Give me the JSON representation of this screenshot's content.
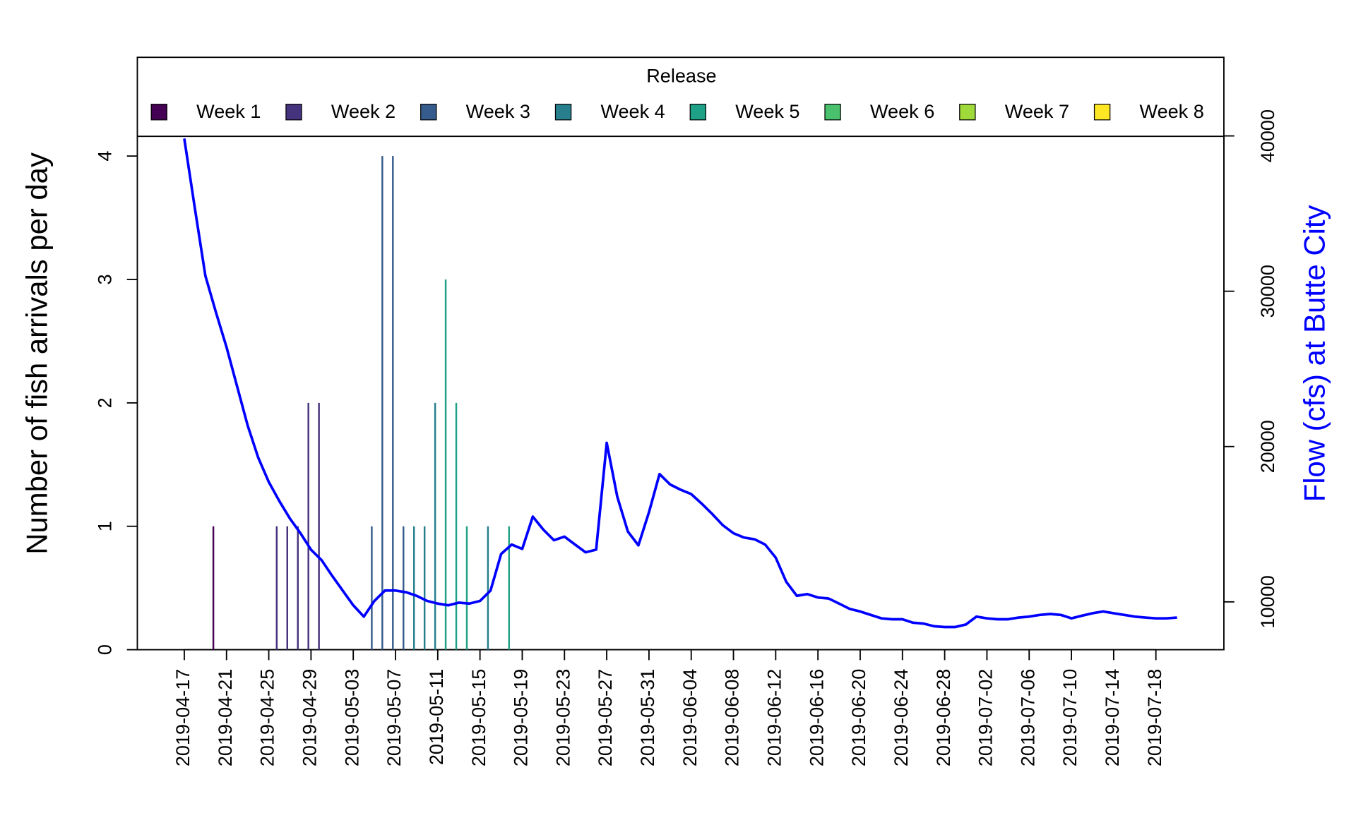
{
  "chart_data": {
    "type": "bar",
    "y_label": "Number of fish arrivals per day",
    "y2_label": "Flow (cfs) at Butte City",
    "legend_title": "Release",
    "ylim": [
      0,
      4.8
    ],
    "yticks": [
      0,
      1,
      2,
      3,
      4
    ],
    "y2lim": [
      6920,
      45060
    ],
    "y2ticks": [
      10000,
      20000,
      30000,
      40000
    ],
    "x": [
      "2019-04-17",
      "2019-04-18",
      "2019-04-19",
      "2019-04-20",
      "2019-04-21",
      "2019-04-22",
      "2019-04-23",
      "2019-04-24",
      "2019-04-25",
      "2019-04-26",
      "2019-04-27",
      "2019-04-28",
      "2019-04-29",
      "2019-04-30",
      "2019-05-01",
      "2019-05-02",
      "2019-05-03",
      "2019-05-04",
      "2019-05-05",
      "2019-05-06",
      "2019-05-07",
      "2019-05-08",
      "2019-05-09",
      "2019-05-10",
      "2019-05-11",
      "2019-05-12",
      "2019-05-13",
      "2019-05-14",
      "2019-05-15",
      "2019-05-16",
      "2019-05-17",
      "2019-05-18",
      "2019-05-19",
      "2019-05-20",
      "2019-05-21",
      "2019-05-22",
      "2019-05-23",
      "2019-05-24",
      "2019-05-25",
      "2019-05-26",
      "2019-05-27",
      "2019-05-28",
      "2019-05-29",
      "2019-05-30",
      "2019-05-31",
      "2019-06-01",
      "2019-06-02",
      "2019-06-03",
      "2019-06-04",
      "2019-06-05",
      "2019-06-06",
      "2019-06-07",
      "2019-06-08",
      "2019-06-09",
      "2019-06-10",
      "2019-06-11",
      "2019-06-12",
      "2019-06-13",
      "2019-06-14",
      "2019-06-15",
      "2019-06-16",
      "2019-06-17",
      "2019-06-18",
      "2019-06-19",
      "2019-06-20",
      "2019-06-21",
      "2019-06-22",
      "2019-06-23",
      "2019-06-24",
      "2019-06-25",
      "2019-06-26",
      "2019-06-27",
      "2019-06-28",
      "2019-06-29",
      "2019-06-30",
      "2019-07-01",
      "2019-07-02",
      "2019-07-03",
      "2019-07-04",
      "2019-07-05",
      "2019-07-06",
      "2019-07-07",
      "2019-07-08",
      "2019-07-09",
      "2019-07-10",
      "2019-07-11",
      "2019-07-12",
      "2019-07-13",
      "2019-07-14",
      "2019-07-15",
      "2019-07-16",
      "2019-07-17",
      "2019-07-18",
      "2019-07-19",
      "2019-07-20"
    ],
    "xticks": [
      "2019-04-17",
      "2019-04-21",
      "2019-04-25",
      "2019-04-29",
      "2019-05-03",
      "2019-05-07",
      "2019-05-11",
      "2019-05-15",
      "2019-05-19",
      "2019-05-23",
      "2019-05-27",
      "2019-05-31",
      "2019-06-04",
      "2019-06-08",
      "2019-06-12",
      "2019-06-16",
      "2019-06-20",
      "2019-06-24",
      "2019-06-28",
      "2019-07-02",
      "2019-07-06",
      "2019-07-10",
      "2019-07-14",
      "2019-07-18"
    ],
    "series": [
      {
        "name": "Week 1",
        "color": "#440154",
        "x": [
          "2019-04-20"
        ],
        "values": [
          1
        ]
      },
      {
        "name": "Week 2",
        "color": "#46337E",
        "x": [
          "2019-04-26",
          "2019-04-27",
          "2019-04-28",
          "2019-04-29",
          "2019-04-30"
        ],
        "values": [
          1,
          1,
          1,
          2,
          2
        ]
      },
      {
        "name": "Week 3",
        "color": "#365C8D",
        "x": [
          "2019-05-05",
          "2019-05-06",
          "2019-05-07",
          "2019-05-08"
        ],
        "values": [
          1,
          4,
          4,
          1
        ]
      },
      {
        "name": "Week 4",
        "color": "#277F8E",
        "x": [
          "2019-05-09",
          "2019-05-10",
          "2019-05-11",
          "2019-05-16"
        ],
        "values": [
          1,
          1,
          2,
          1
        ]
      },
      {
        "name": "Week 5",
        "color": "#1FA187",
        "x": [
          "2019-05-12",
          "2019-05-13",
          "2019-05-14",
          "2019-05-18"
        ],
        "values": [
          3,
          2,
          1,
          1
        ]
      },
      {
        "name": "Week 6",
        "color": "#4AC16D",
        "x": [],
        "values": []
      },
      {
        "name": "Week 7",
        "color": "#9FDA3A",
        "x": [],
        "values": []
      },
      {
        "name": "Week 8",
        "color": "#FDE725",
        "x": [],
        "values": []
      }
    ],
    "line": {
      "type": "line",
      "axis": "y2",
      "color": "#0000FF",
      "values": [
        39830,
        35350,
        30990,
        28640,
        26400,
        23880,
        21360,
        19290,
        17720,
        16490,
        15370,
        14420,
        13360,
        12690,
        11680,
        10730,
        9780,
        9050,
        10060,
        10730,
        10730,
        10620,
        10390,
        10060,
        9890,
        9780,
        9950,
        9890,
        10060,
        10730,
        13080,
        13690,
        13410,
        15490,
        14650,
        13970,
        14200,
        13690,
        13190,
        13360,
        20240,
        16770,
        14530,
        13640,
        15770,
        18230,
        17560,
        17220,
        16940,
        16320,
        15650,
        14930,
        14420,
        14140,
        14030,
        13690,
        12850,
        11290,
        10390,
        10500,
        10280,
        10220,
        9890,
        9550,
        9380,
        9160,
        8940,
        8880,
        8880,
        8660,
        8600,
        8430,
        8380,
        8380,
        8540,
        9050,
        8940,
        8880,
        8880,
        8990,
        9050,
        9160,
        9220,
        9160,
        8940,
        9110,
        9270,
        9380,
        9270,
        9160,
        9050,
        8990,
        8940,
        8940,
        8990
      ]
    }
  }
}
